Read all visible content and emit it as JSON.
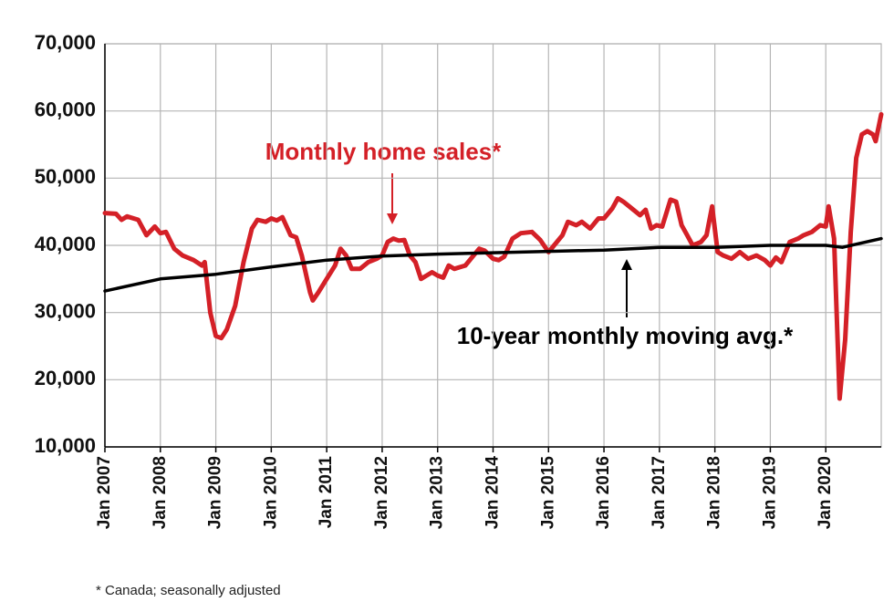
{
  "chart_data": {
    "type": "line",
    "annotations": [
      "Monthly home sales*",
      "10-year monthly moving avg.*"
    ],
    "footnote": "* Canada; seasonally adjusted",
    "xlim": [
      2007,
      2021
    ],
    "xticks": [
      {
        "value": 2007,
        "label": "Jan 2007"
      },
      {
        "value": 2008,
        "label": "Jan 2008"
      },
      {
        "value": 2009,
        "label": "Jan 2009"
      },
      {
        "value": 2010,
        "label": "Jan 2010"
      },
      {
        "value": 2011,
        "label": "Jan 2011"
      },
      {
        "value": 2012,
        "label": "Jan 2012"
      },
      {
        "value": 2013,
        "label": "Jan 2013"
      },
      {
        "value": 2014,
        "label": "Jan 2014"
      },
      {
        "value": 2015,
        "label": "Jan 2015"
      },
      {
        "value": 2016,
        "label": "Jan 2016"
      },
      {
        "value": 2017,
        "label": "Jan 2017"
      },
      {
        "value": 2018,
        "label": "Jan 2018"
      },
      {
        "value": 2019,
        "label": "Jan 2019"
      },
      {
        "value": 2020,
        "label": "Jan 2020"
      }
    ],
    "ylim": [
      10000,
      70000
    ],
    "yticks": [
      {
        "value": 10000,
        "label": "10,000"
      },
      {
        "value": 20000,
        "label": "20,000"
      },
      {
        "value": 30000,
        "label": "30,000"
      },
      {
        "value": 40000,
        "label": "40,000"
      },
      {
        "value": 50000,
        "label": "50,000"
      },
      {
        "value": 60000,
        "label": "60,000"
      },
      {
        "value": 70000,
        "label": "70,000"
      }
    ],
    "grid": true,
    "series": [
      {
        "name": "Monthly home sales*",
        "color": "#d42027",
        "x": [
          2007.0,
          2007.2,
          2007.3,
          2007.4,
          2007.6,
          2007.75,
          2007.9,
          2008.0,
          2008.1,
          2008.25,
          2008.4,
          2008.6,
          2008.75,
          2008.8,
          2008.9,
          2009.0,
          2009.1,
          2009.2,
          2009.35,
          2009.5,
          2009.65,
          2009.75,
          2009.9,
          2010.0,
          2010.1,
          2010.2,
          2010.35,
          2010.45,
          2010.55,
          2010.7,
          2010.75,
          2010.85,
          2011.0,
          2011.15,
          2011.25,
          2011.35,
          2011.45,
          2011.6,
          2011.75,
          2011.9,
          2012.0,
          2012.1,
          2012.2,
          2012.3,
          2012.4,
          2012.5,
          2012.6,
          2012.7,
          2012.8,
          2012.9,
          2013.0,
          2013.1,
          2013.2,
          2013.3,
          2013.5,
          2013.6,
          2013.75,
          2013.85,
          2014.0,
          2014.1,
          2014.2,
          2014.35,
          2014.5,
          2014.7,
          2014.85,
          2015.0,
          2015.1,
          2015.25,
          2015.35,
          2015.5,
          2015.6,
          2015.75,
          2015.9,
          2016.0,
          2016.15,
          2016.25,
          2016.35,
          2016.5,
          2016.65,
          2016.75,
          2016.85,
          2016.95,
          2017.05,
          2017.2,
          2017.3,
          2017.4,
          2017.5,
          2017.6,
          2017.75,
          2017.85,
          2017.95,
          2018.05,
          2018.15,
          2018.3,
          2018.45,
          2018.6,
          2018.75,
          2018.9,
          2019.0,
          2019.1,
          2019.2,
          2019.35,
          2019.5,
          2019.6,
          2019.75,
          2019.9,
          2020.0,
          2020.05,
          2020.15,
          2020.25,
          2020.35,
          2020.45,
          2020.55,
          2020.65,
          2020.75,
          2020.85,
          2020.9,
          2021.0
        ],
        "values": [
          44800,
          44700,
          43800,
          44300,
          43800,
          41500,
          42800,
          41800,
          42000,
          39500,
          38500,
          37800,
          37000,
          37500,
          30000,
          26500,
          26200,
          27500,
          31000,
          37500,
          42500,
          43800,
          43500,
          44000,
          43700,
          44200,
          41500,
          41200,
          38500,
          33000,
          31800,
          33000,
          35000,
          37000,
          39500,
          38500,
          36500,
          36500,
          37500,
          38000,
          38500,
          40500,
          41000,
          40700,
          40800,
          38500,
          37500,
          35000,
          35500,
          36000,
          35500,
          35200,
          37000,
          36500,
          37000,
          38000,
          39500,
          39200,
          38000,
          37800,
          38300,
          41000,
          41800,
          42000,
          40800,
          39000,
          40000,
          41500,
          43500,
          43000,
          43500,
          42500,
          44000,
          44000,
          45500,
          47000,
          46500,
          45500,
          44500,
          45300,
          42500,
          43000,
          42800,
          46800,
          46500,
          43000,
          41500,
          40000,
          40500,
          41500,
          45800,
          39000,
          38500,
          38000,
          39000,
          38000,
          38500,
          37800,
          37000,
          38200,
          37500,
          40500,
          41000,
          41500,
          42000,
          43000,
          42800,
          45800,
          41000,
          17200,
          26000,
          42000,
          53000,
          56500,
          57000,
          56500,
          55500,
          59500
        ]
      },
      {
        "name": "10-year monthly moving avg.*",
        "color": "#000000",
        "x": [
          2007,
          2008,
          2009,
          2010,
          2011,
          2012,
          2013,
          2014,
          2015,
          2016,
          2017,
          2018,
          2019,
          2020,
          2020.3,
          2021
        ],
        "values": [
          33200,
          35000,
          35700,
          36800,
          37800,
          38400,
          38700,
          38900,
          39100,
          39300,
          39700,
          39700,
          40000,
          40000,
          39700,
          41000
        ]
      }
    ]
  }
}
